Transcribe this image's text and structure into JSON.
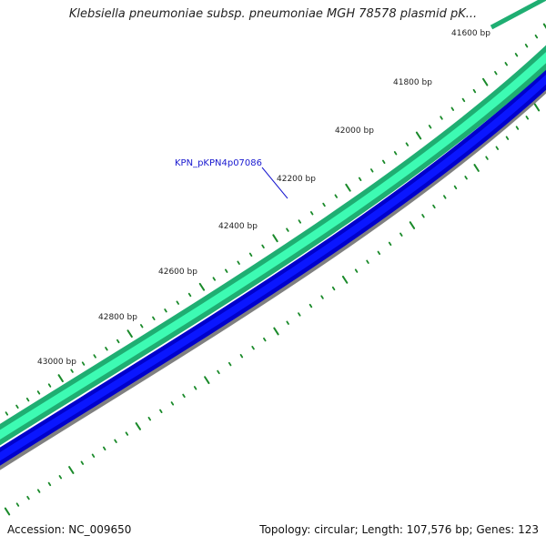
{
  "title": "Klebsiella pneumoniae subsp. pneumoniae MGH 78578 plasmid pK...",
  "footer": {
    "accession": "Accession: NC_009650",
    "summary": "Topology: circular; Length: 107,576 bp; Genes: 123"
  },
  "ticks": [
    {
      "bp": 41600,
      "label": "41600 bp"
    },
    {
      "bp": 41800,
      "label": "41800 bp"
    },
    {
      "bp": 42000,
      "label": "42000 bp"
    },
    {
      "bp": 42200,
      "label": "42200 bp"
    },
    {
      "bp": 42400,
      "label": "42400 bp"
    },
    {
      "bp": 42600,
      "label": "42600 bp"
    },
    {
      "bp": 42800,
      "label": "42800 bp"
    },
    {
      "bp": 43000,
      "label": "43000 bp"
    }
  ],
  "gene_label": "KPN_pKPN4p07086",
  "colors": {
    "ring_forward_outer": "#1fae72",
    "ring_forward_inner": "#3dfbb3",
    "ring_reverse_outer": "#0000cc",
    "ring_reverse_inner": "#0a16ff",
    "backbone": "#808080",
    "dots": "#1a8a2a",
    "label_line": "#1a1ad0"
  }
}
